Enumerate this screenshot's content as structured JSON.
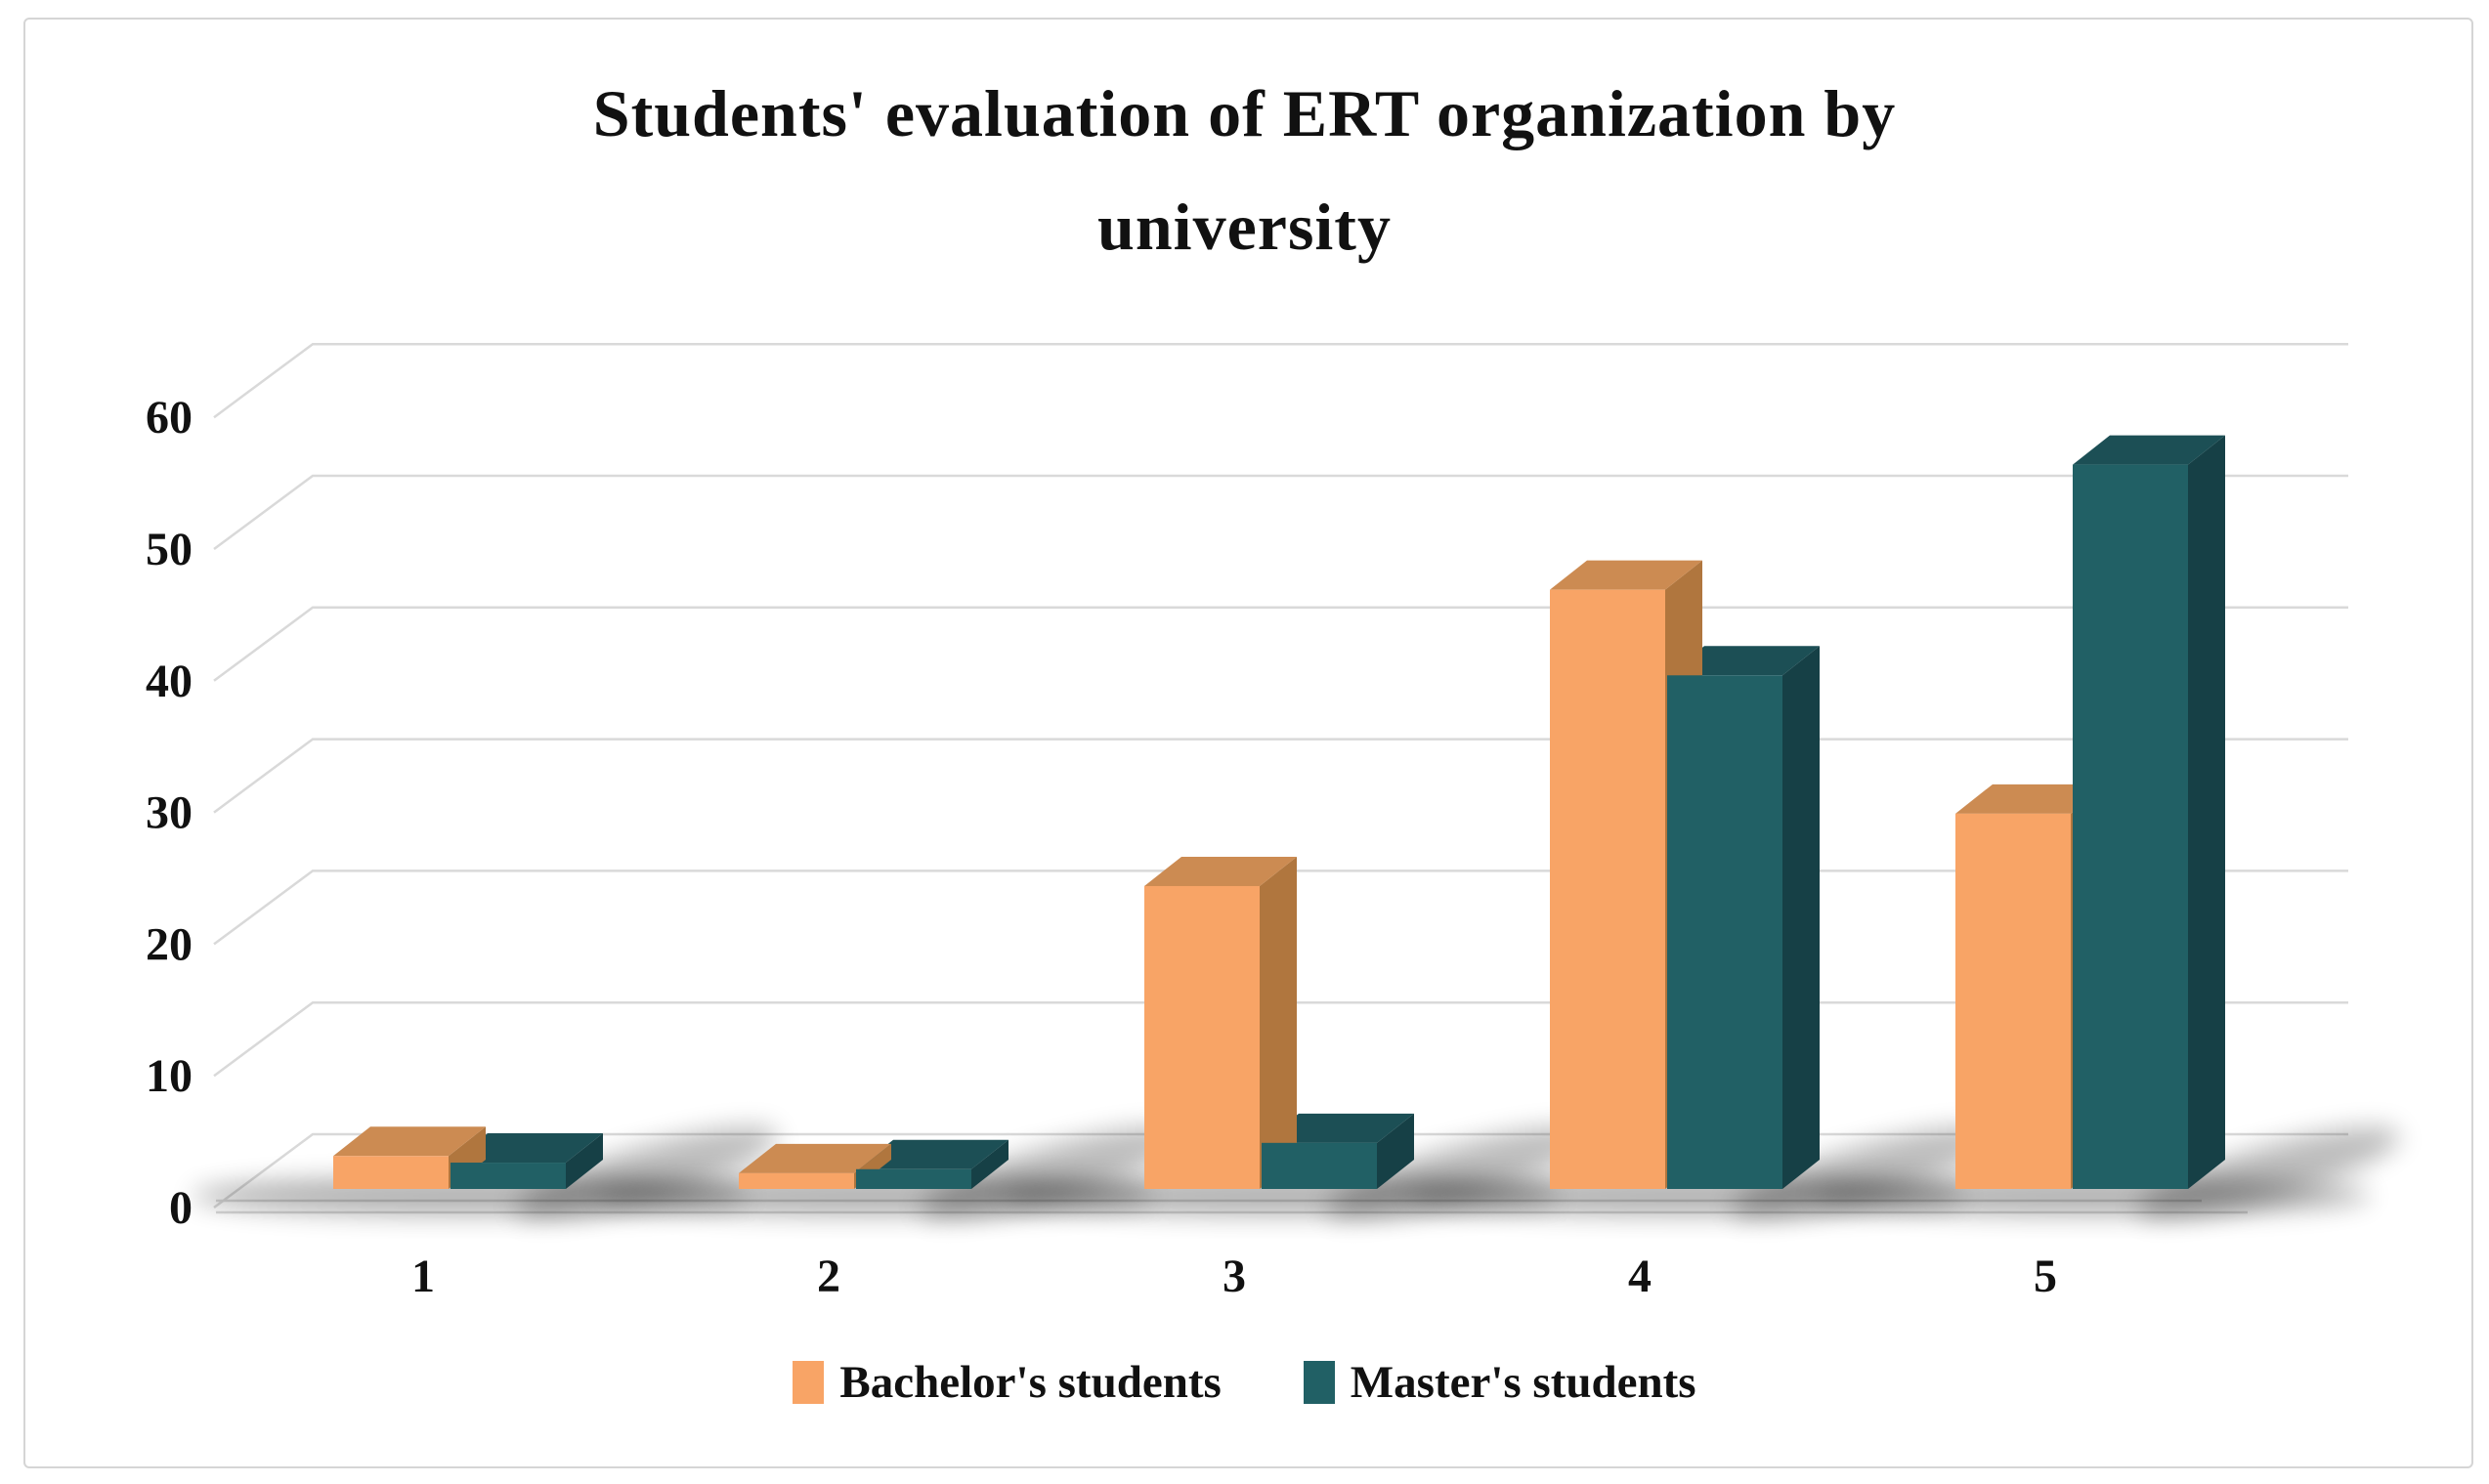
{
  "title_lines": [
    "Students' evaluation of ERT organization by",
    "university"
  ],
  "chart_data": {
    "type": "bar",
    "style": "3d-clustered-column",
    "title": "Students' evaluation of ERT organization by university",
    "categories": [
      "1",
      "2",
      "3",
      "4",
      "5"
    ],
    "series": [
      {
        "name": "Bachelor's students",
        "values": [
          2.5,
          1.2,
          23,
          45.5,
          28.5
        ],
        "color": "#F8A466",
        "color_top": "#CC8B52",
        "color_side": "#B0763E"
      },
      {
        "name": "Master's students",
        "values": [
          2,
          1.5,
          3.5,
          39,
          55
        ],
        "color": "#216065",
        "color_top": "#1C4F55",
        "color_side": "#164046"
      }
    ],
    "xlabel": "",
    "ylabel": "",
    "ylim": [
      0,
      60
    ],
    "yticks": [
      0,
      10,
      20,
      30,
      40,
      50,
      60
    ],
    "grid": "horizontal",
    "legend_position": "bottom",
    "gridline_color": "#D9D9D9",
    "text_color": "#111111"
  },
  "legend": {
    "items": [
      {
        "label": "Bachelor's students",
        "color": "#F8A466"
      },
      {
        "label": "Master's students",
        "color": "#216065"
      }
    ]
  }
}
